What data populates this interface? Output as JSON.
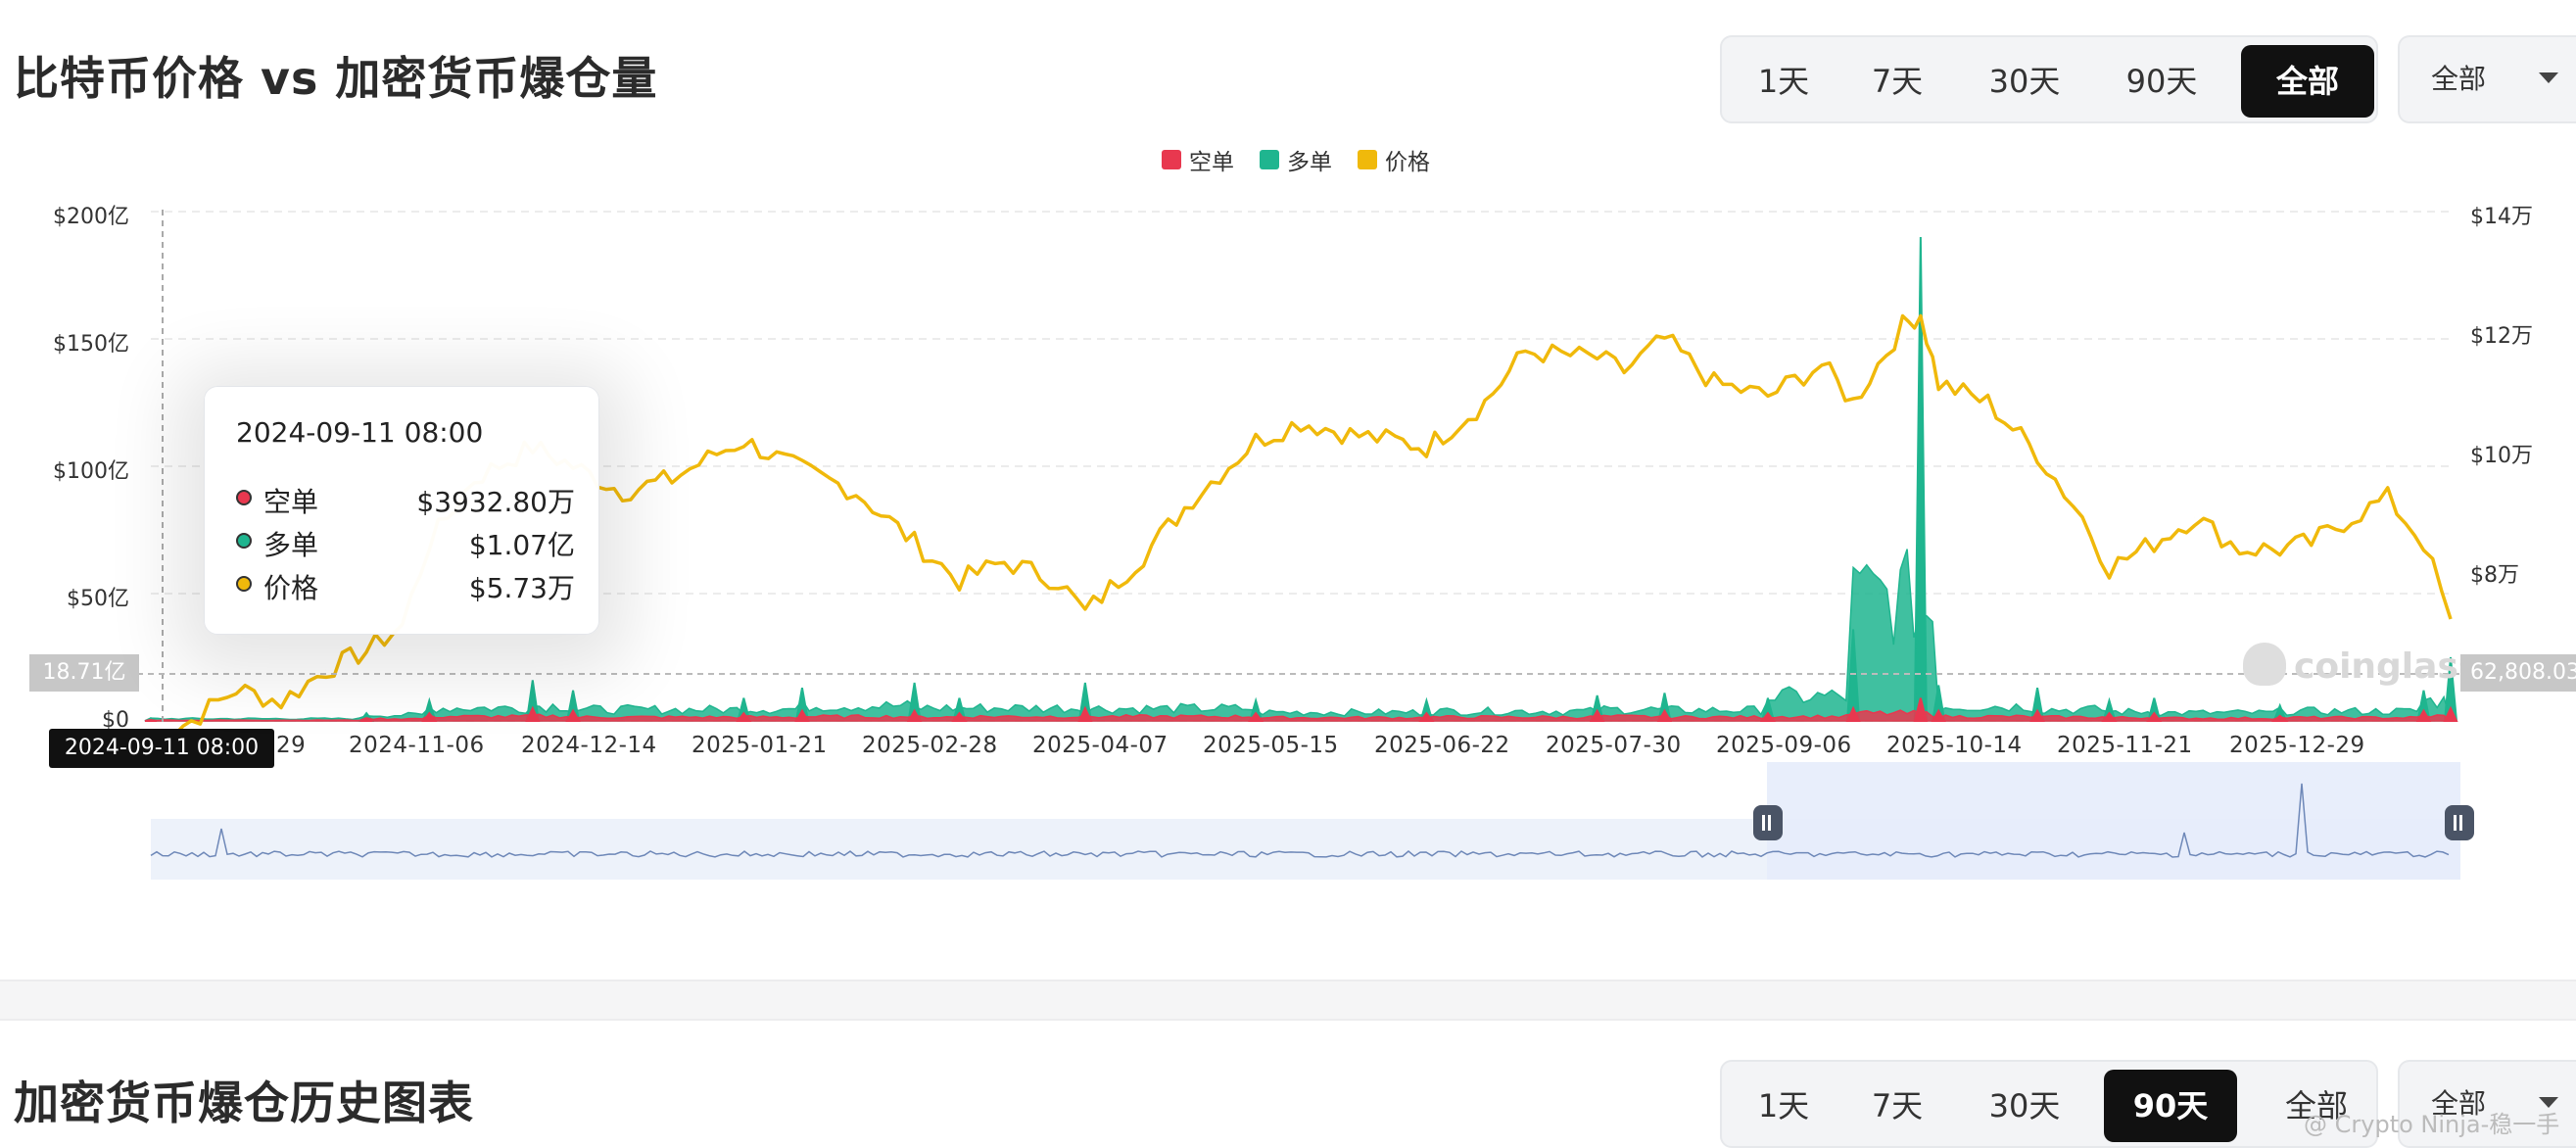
{
  "top_section": {
    "title": "比特币价格 vs 加密货币爆仓量",
    "tabs": [
      "1天",
      "7天",
      "30天",
      "90天",
      "全部"
    ],
    "active_tab": "全部",
    "dropdown_value": "全部"
  },
  "bottom_section": {
    "title": "加密货币爆仓历史图表",
    "tabs": [
      "1天",
      "7天",
      "30天",
      "90天",
      "全部"
    ],
    "active_tab": "90天",
    "dropdown_value": "全部"
  },
  "tooltip": {
    "date": "2024-09-11 08:00",
    "rows": [
      {
        "name": "空单",
        "value": "$3932.80万",
        "color": "#e8384f"
      },
      {
        "name": "多单",
        "value": "$1.07亿",
        "color": "#1fb58f"
      },
      {
        "name": "价格",
        "value": "$5.73万",
        "color": "#f0b90b"
      }
    ]
  },
  "crosshair": {
    "x_label": "2024-09-11 08:00",
    "left_marker": "18.71亿",
    "right_marker": "62,808.03"
  },
  "watermark": "coinglass",
  "credit": "@ Crypto Ninja-稳一手",
  "chart_data": {
    "type": "line",
    "legend_position": "top-center",
    "grid": true,
    "legend": [
      {
        "name": "空单",
        "color": "#e8384f"
      },
      {
        "name": "多单",
        "color": "#1fb58f"
      },
      {
        "name": "价格",
        "color": "#f0b90b"
      }
    ],
    "x_tick_labels": [
      "2024-10-29",
      "2024-11-06",
      "2024-12-14",
      "2025-01-21",
      "2025-02-28",
      "2025-04-07",
      "2025-05-15",
      "2025-06-22",
      "2025-07-30",
      "2025-09-06",
      "2025-10-14",
      "2025-11-21",
      "2025-12-29"
    ],
    "x_tick_labels_visible": [
      "29",
      "2024-11-06",
      "2024-12-14",
      "2025-01-21",
      "2025-02-28",
      "2025-04-07",
      "2025-05-15",
      "2025-06-22",
      "2025-07-30",
      "2025-09-06",
      "2025-10-14",
      "2025-11-21",
      "2025-12-29"
    ],
    "left_axis": {
      "labels": [
        "$200亿",
        "$150亿",
        "$100亿",
        "$50亿",
        "$0"
      ],
      "unit": "亿 USD",
      "ylim": [
        0,
        200
      ]
    },
    "right_axis": {
      "labels": [
        "$14万",
        "$12万",
        "$10万",
        "$8万"
      ],
      "unit": "万 USD",
      "ylim": [
        6,
        14
      ]
    },
    "series": [
      {
        "name": "价格",
        "color": "#f0b90b",
        "axis": "right",
        "x": [
          "2024-09-11",
          "2024-09-20",
          "2024-09-30",
          "2024-10-10",
          "2024-10-20",
          "2024-10-29",
          "2024-11-06",
          "2024-11-12",
          "2024-11-22",
          "2024-12-05",
          "2024-12-14",
          "2024-12-25",
          "2025-01-05",
          "2025-01-15",
          "2025-01-21",
          "2025-02-01",
          "2025-02-15",
          "2025-02-28",
          "2025-03-10",
          "2025-03-20",
          "2025-04-01",
          "2025-04-07",
          "2025-04-20",
          "2025-05-01",
          "2025-05-15",
          "2025-05-25",
          "2025-06-05",
          "2025-06-15",
          "2025-06-22",
          "2025-07-05",
          "2025-07-14",
          "2025-07-30",
          "2025-08-05",
          "2025-08-14",
          "2025-08-25",
          "2025-09-06",
          "2025-09-18",
          "2025-09-25",
          "2025-10-06",
          "2025-10-10",
          "2025-10-14",
          "2025-10-25",
          "2025-11-05",
          "2025-11-15",
          "2025-11-21",
          "2025-12-01",
          "2025-12-10",
          "2025-12-20",
          "2025-12-29",
          "2026-01-05",
          "2026-01-14",
          "2026-01-22",
          "2026-01-30",
          "2026-02-05"
        ],
        "values": [
          5.7,
          6.0,
          6.5,
          6.3,
          6.8,
          7.1,
          7.5,
          8.8,
          9.8,
          10.3,
          10.0,
          9.6,
          9.8,
          10.2,
          10.4,
          10.0,
          9.6,
          8.8,
          8.2,
          8.5,
          8.2,
          7.7,
          8.6,
          9.5,
          10.4,
          10.7,
          10.5,
          10.4,
          10.3,
          11.0,
          11.8,
          11.7,
          11.5,
          12.0,
          11.3,
          11.1,
          11.6,
          11.0,
          12.2,
          12.4,
          11.3,
          11.0,
          10.2,
          9.2,
          8.4,
          8.8,
          9.2,
          8.7,
          8.7,
          8.8,
          9.2,
          9.5,
          8.8,
          7.6
        ]
      },
      {
        "name": "多单",
        "color": "#1fb58f",
        "axis": "left",
        "x": [
          "2024-09-11",
          "2024-10-29",
          "2024-11-12",
          "2024-12-05",
          "2024-12-14",
          "2025-01-21",
          "2025-02-03",
          "2025-02-28",
          "2025-03-10",
          "2025-04-07",
          "2025-05-15",
          "2025-06-22",
          "2025-07-30",
          "2025-08-14",
          "2025-09-06",
          "2025-09-25",
          "2025-10-10",
          "2025-10-14",
          "2025-11-05",
          "2025-11-21",
          "2025-12-01",
          "2025-12-29",
          "2026-01-30",
          "2026-02-05"
        ],
        "values": [
          1.07,
          3,
          8,
          16,
          12,
          9,
          13,
          15,
          9,
          15,
          8,
          8,
          10,
          11,
          9,
          36,
          190,
          14,
          13,
          8,
          9,
          6,
          12,
          25
        ]
      },
      {
        "name": "空单",
        "color": "#e8384f",
        "axis": "left",
        "x": [
          "2024-09-11",
          "2024-10-29",
          "2024-11-12",
          "2024-12-05",
          "2024-12-14",
          "2025-01-21",
          "2025-02-03",
          "2025-02-28",
          "2025-03-10",
          "2025-04-07",
          "2025-05-15",
          "2025-06-22",
          "2025-07-30",
          "2025-08-14",
          "2025-09-06",
          "2025-09-25",
          "2025-10-10",
          "2025-10-14",
          "2025-11-05",
          "2025-11-21",
          "2025-12-01",
          "2025-12-29",
          "2026-01-30",
          "2026-02-05"
        ],
        "values": [
          0.39,
          1,
          3,
          5,
          4,
          3,
          4,
          4,
          3,
          5,
          3,
          3,
          4,
          4,
          3,
          5,
          9,
          4,
          4,
          3,
          3,
          2,
          4,
          5
        ]
      }
    ]
  }
}
